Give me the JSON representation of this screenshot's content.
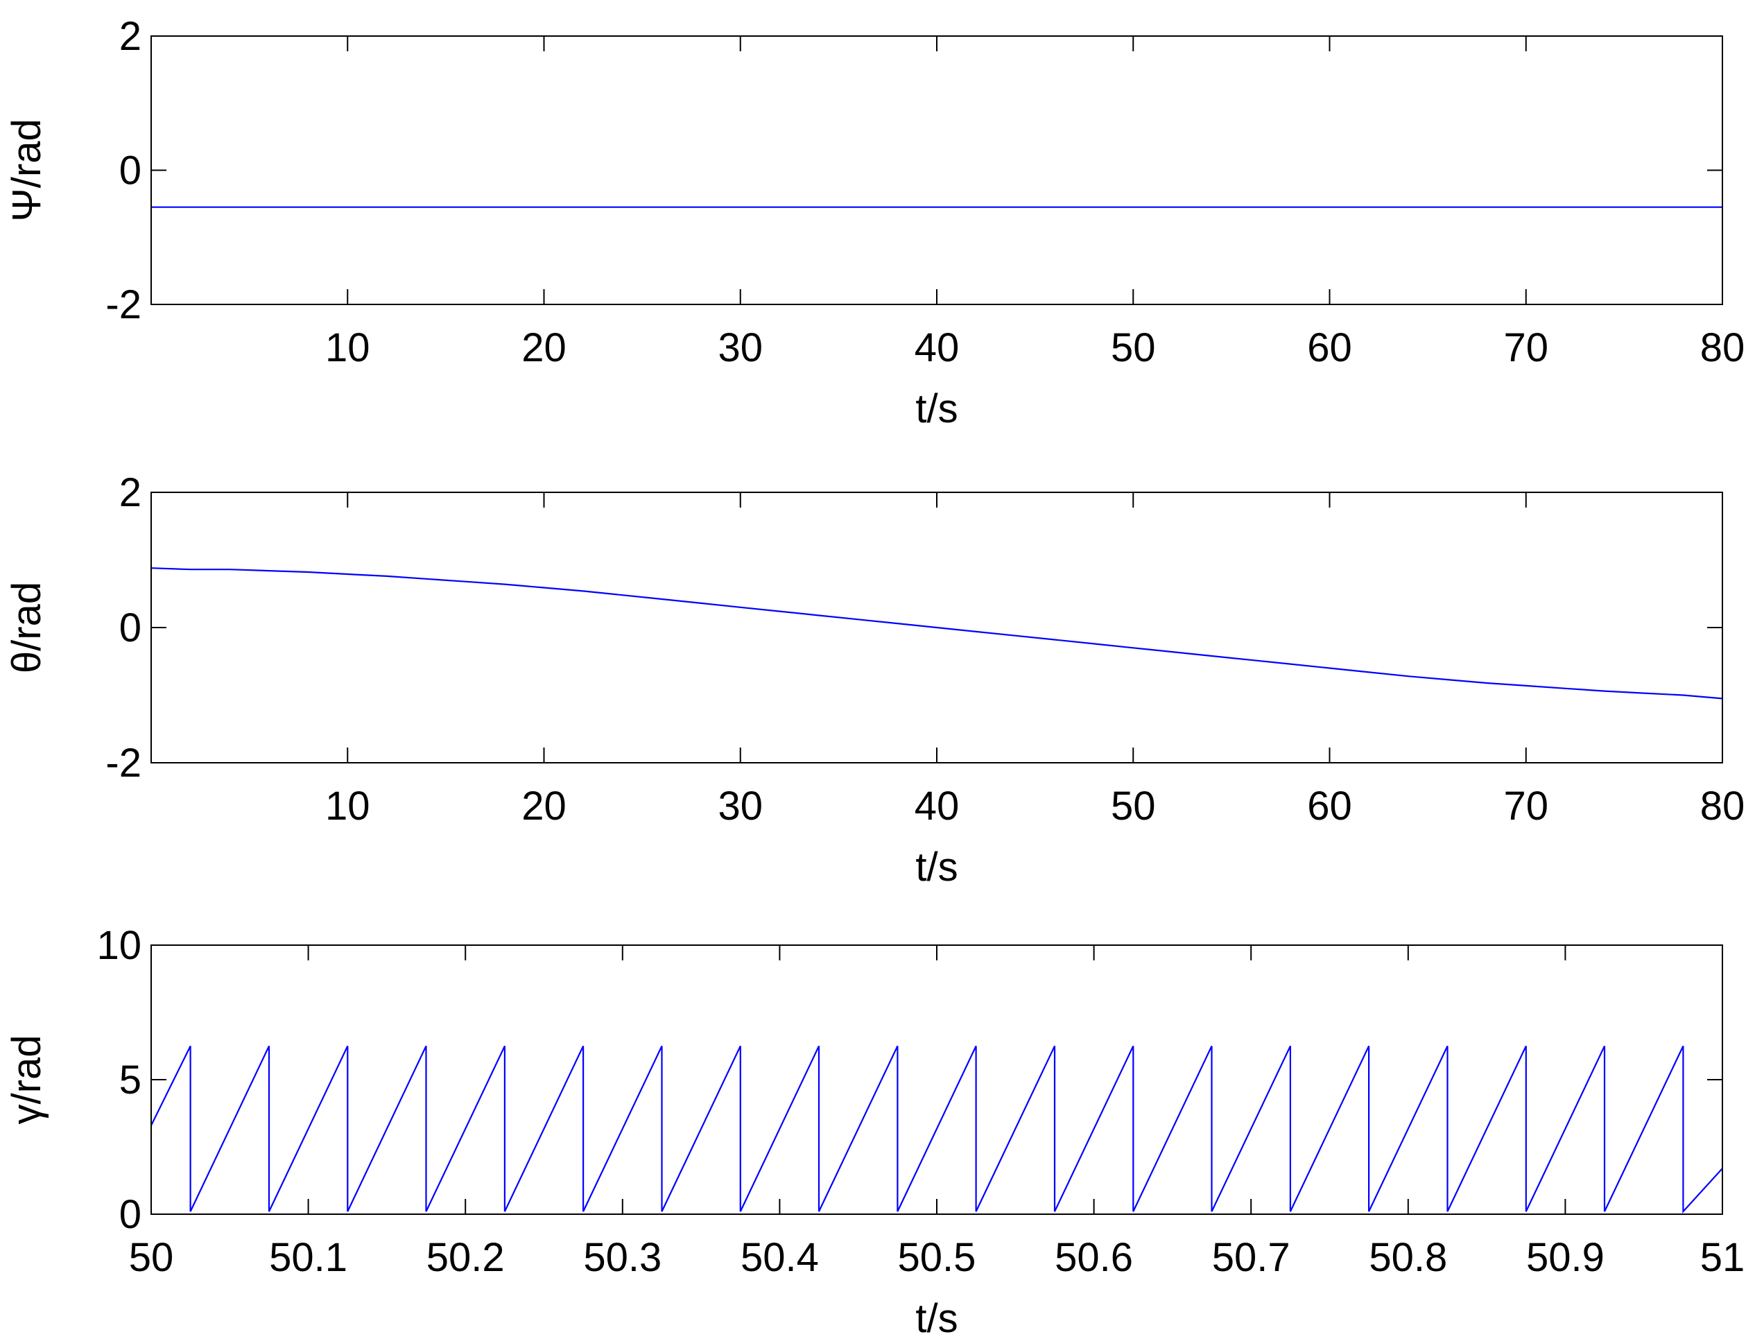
{
  "chart_data": [
    {
      "type": "line",
      "xlabel": "t/s",
      "ylabel_symbol": "Ψ",
      "ylabel_unit": "/rad",
      "xlim": [
        0,
        80
      ],
      "ylim": [
        -2,
        2
      ],
      "xticks": [
        10,
        20,
        30,
        40,
        50,
        60,
        70,
        80
      ],
      "xtick_labels": [
        "10",
        "20",
        "30",
        "40",
        "50",
        "60",
        "70",
        "80"
      ],
      "yticks": [
        -2,
        0,
        2
      ],
      "ytick_labels": [
        "-2",
        "0",
        "2"
      ],
      "grid": false,
      "line_color": "#0000ff",
      "series": [
        {
          "x": [
            0,
            80
          ],
          "values": [
            -0.55,
            -0.55
          ]
        }
      ]
    },
    {
      "type": "line",
      "xlabel": "t/s",
      "ylabel_symbol": "θ",
      "ylabel_unit": "/rad",
      "xlim": [
        0,
        80
      ],
      "ylim": [
        -2,
        2
      ],
      "xticks": [
        10,
        20,
        30,
        40,
        50,
        60,
        70,
        80
      ],
      "xtick_labels": [
        "10",
        "20",
        "30",
        "40",
        "50",
        "60",
        "70",
        "80"
      ],
      "yticks": [
        -2,
        0,
        2
      ],
      "ytick_labels": [
        "-2",
        "0",
        "2"
      ],
      "grid": false,
      "line_color": "#0000ff",
      "series": [
        {
          "x": [
            0,
            2,
            4,
            6,
            8,
            10,
            12,
            14,
            16,
            18,
            20,
            22,
            24,
            26,
            28,
            30,
            32,
            34,
            36,
            38,
            40,
            42,
            44,
            46,
            48,
            50,
            52,
            54,
            56,
            58,
            60,
            62,
            64,
            66,
            68,
            70,
            72,
            74,
            76,
            78,
            80
          ],
          "values": [
            0.88,
            0.86,
            0.86,
            0.84,
            0.82,
            0.79,
            0.76,
            0.72,
            0.68,
            0.64,
            0.59,
            0.54,
            0.48,
            0.42,
            0.36,
            0.3,
            0.24,
            0.18,
            0.12,
            0.06,
            0.0,
            -0.06,
            -0.12,
            -0.18,
            -0.24,
            -0.3,
            -0.36,
            -0.42,
            -0.48,
            -0.54,
            -0.6,
            -0.66,
            -0.72,
            -0.77,
            -0.82,
            -0.86,
            -0.9,
            -0.94,
            -0.97,
            -1.0,
            -1.05
          ]
        }
      ]
    },
    {
      "type": "line",
      "xlabel": "t/s",
      "ylabel_symbol": "γ",
      "ylabel_unit": "/rad",
      "xlim": [
        50,
        51
      ],
      "ylim": [
        0,
        10
      ],
      "xticks": [
        50,
        50.1,
        50.2,
        50.3,
        50.4,
        50.5,
        50.6,
        50.7,
        50.8,
        50.9,
        51
      ],
      "xtick_labels": [
        "50",
        "50.1",
        "50.2",
        "50.3",
        "50.4",
        "50.5",
        "50.6",
        "50.7",
        "50.8",
        "50.9",
        "51"
      ],
      "yticks": [
        0,
        5,
        10
      ],
      "ytick_labels": [
        "0",
        "5",
        "10"
      ],
      "grid": false,
      "line_color": "#0000ff",
      "series": [
        {
          "x": [
            50.0,
            50.025,
            50.025,
            50.075,
            50.075,
            50.125,
            50.125,
            50.175,
            50.175,
            50.225,
            50.225,
            50.275,
            50.275,
            50.325,
            50.325,
            50.375,
            50.375,
            50.425,
            50.425,
            50.475,
            50.475,
            50.525,
            50.525,
            50.575,
            50.575,
            50.625,
            50.625,
            50.675,
            50.675,
            50.725,
            50.725,
            50.775,
            50.775,
            50.825,
            50.825,
            50.875,
            50.875,
            50.925,
            50.925,
            50.975,
            50.975,
            51.0
          ],
          "values": [
            3.3,
            6.25,
            0.1,
            6.25,
            0.1,
            6.25,
            0.1,
            6.25,
            0.1,
            6.25,
            0.1,
            6.25,
            0.1,
            6.25,
            0.1,
            6.25,
            0.1,
            6.25,
            0.1,
            6.25,
            0.1,
            6.25,
            0.1,
            6.25,
            0.1,
            6.25,
            0.1,
            6.25,
            0.1,
            6.25,
            0.1,
            6.25,
            0.1,
            6.25,
            0.1,
            6.25,
            0.1,
            6.25,
            0.1,
            6.25,
            0.1,
            1.7
          ]
        }
      ]
    }
  ]
}
